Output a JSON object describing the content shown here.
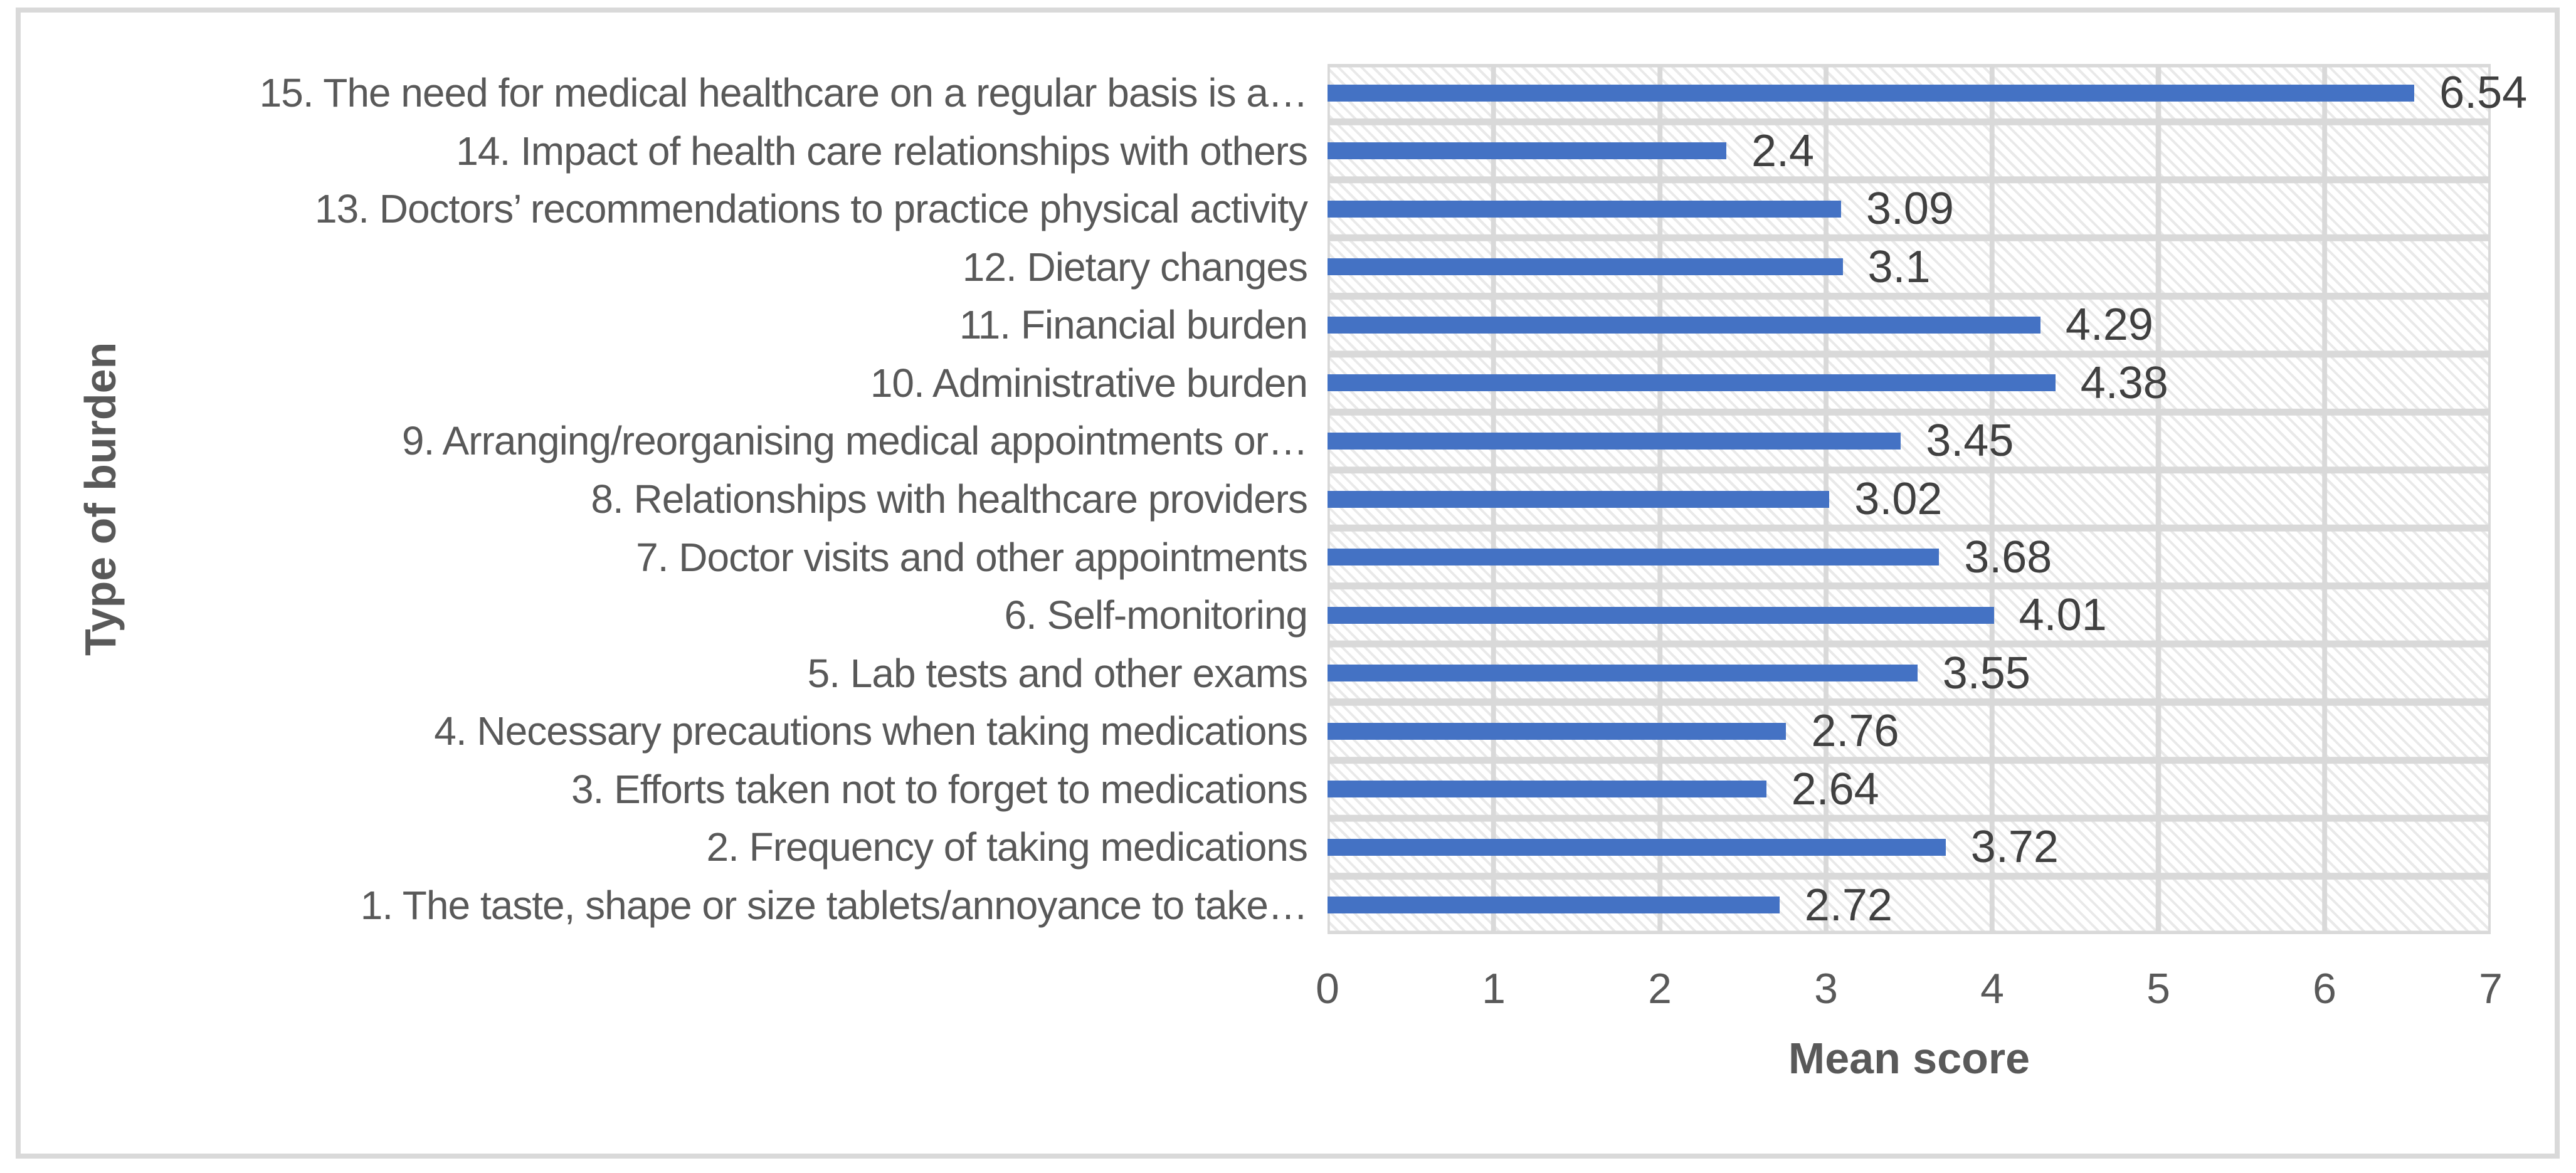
{
  "chart_data": {
    "type": "bar",
    "orientation": "horizontal",
    "title": "",
    "xlabel": "Mean score",
    "ylabel": "Type of burden",
    "xlim": [
      0,
      7
    ],
    "x_ticks": [
      "0",
      "1",
      "2",
      "3",
      "4",
      "5",
      "6",
      "7"
    ],
    "grid": true,
    "legend": "none",
    "bar_color": "#4472C4",
    "gridline_color": "#d9d9d9",
    "plot_pattern": "light-diagonal-hatch",
    "categories": [
      "15. The need for medical healthcare on a regular basis is a…",
      "14. Impact of health care relationships with others",
      "13. Doctors’ recommendations to practice physical activity",
      "12. Dietary changes",
      "11. Financial burden",
      "10. Administrative burden",
      "9. Arranging/reorganising medical appointments or…",
      "8. Relationships with healthcare providers",
      "7. Doctor visits and other appointments",
      "6. Self-monitoring",
      "5. Lab tests and other exams",
      "4. Necessary precautions when taking medications",
      "3. Efforts taken not to forget to medications",
      "2. Frequency of taking medications",
      "1. The taste, shape or size tablets/annoyance to take…"
    ],
    "values": [
      6.54,
      2.4,
      3.09,
      3.1,
      4.29,
      4.38,
      3.45,
      3.02,
      3.68,
      4.01,
      3.55,
      2.76,
      2.64,
      3.72,
      2.72
    ],
    "value_labels": [
      "6.54",
      "2.4",
      "3.09",
      "3.1",
      "4.29",
      "4.38",
      "3.45",
      "3.02",
      "3.68",
      "4.01",
      "3.55",
      "2.76",
      "2.64",
      "3.72",
      "2.72"
    ]
  }
}
